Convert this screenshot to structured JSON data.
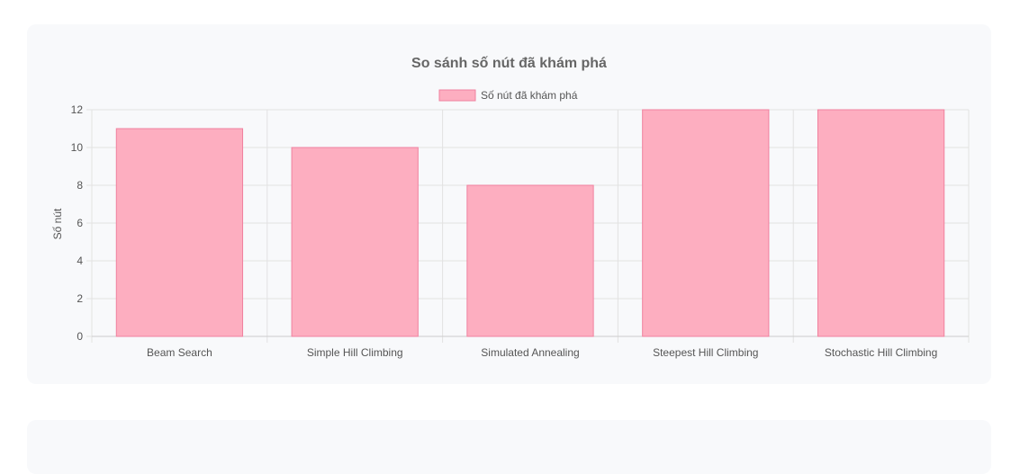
{
  "chart_data": {
    "type": "bar",
    "title": "So sánh số nút đã khám phá",
    "ylabel": "Số nút",
    "xlabel": "",
    "categories": [
      "Beam Search",
      "Simple Hill Climbing",
      "Simulated Annealing",
      "Steepest Hill Climbing",
      "Stochastic Hill Climbing"
    ],
    "series": [
      {
        "name": "Số nút đã khám phá",
        "values": [
          11,
          10,
          8,
          12,
          12
        ]
      }
    ],
    "ylim": [
      0,
      12
    ],
    "yticks": [
      0,
      2,
      4,
      6,
      8,
      10,
      12
    ],
    "grid": true,
    "legend": "top-center",
    "colors": {
      "bar_fill": "#fdaec0",
      "bar_stroke": "#f0819f",
      "grid": "#e2e2e2",
      "axis_text": "#555555",
      "title_text": "#666666"
    }
  }
}
